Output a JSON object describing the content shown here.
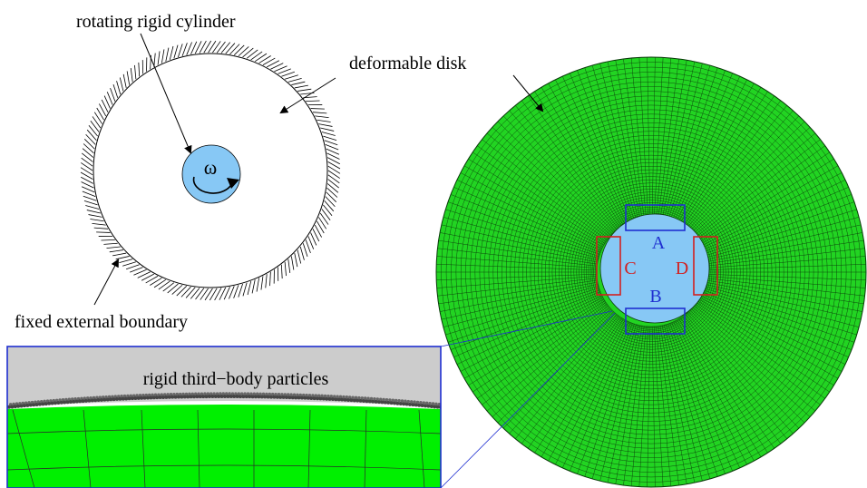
{
  "schematic": {
    "label_cylinder": "rotating rigid cylinder",
    "label_disk": "deformable disk",
    "label_boundary": "fixed external boundary",
    "omega": "ω"
  },
  "inset": {
    "label_particles": "rigid third−body particles"
  },
  "mesh": {
    "region_A": "A",
    "region_B": "B",
    "region_C": "C",
    "region_D": "D"
  },
  "colors": {
    "mesh_green": "#22d422",
    "inset_green": "#00f000",
    "cylinder_blue": "#87c8f5",
    "particle_grey": "#cccccc",
    "box_blue": "#1f2fd0",
    "box_red": "#d22020"
  }
}
